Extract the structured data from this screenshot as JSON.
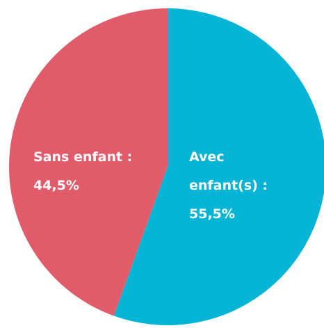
{
  "chart_data": {
    "type": "pie",
    "categories": [
      "Avec enfant(s) :",
      "Sans enfant :"
    ],
    "values": [
      55.5,
      44.5
    ],
    "value_labels": [
      "55,5%",
      "44,5%"
    ],
    "colors": [
      "#06b4d6",
      "#e05c6b"
    ]
  }
}
